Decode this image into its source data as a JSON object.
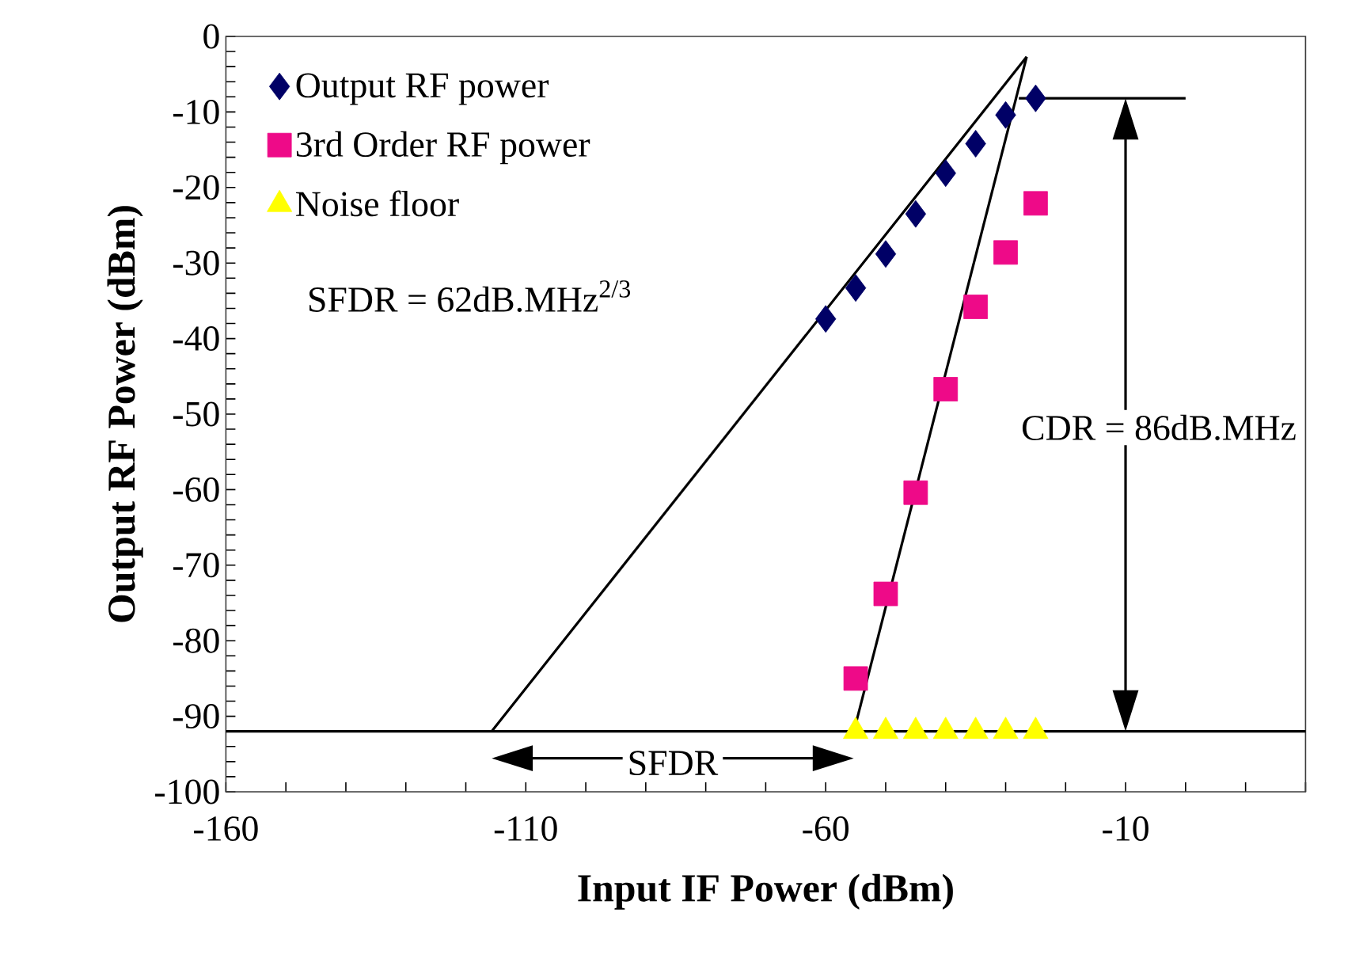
{
  "chart_data": {
    "type": "scatter",
    "xlabel": "Input IF Power (dBm)",
    "ylabel": "Output RF Power (dBm)",
    "xlim": [
      -160,
      20
    ],
    "ylim": [
      -100,
      0
    ],
    "xticks": [
      -160,
      {
        "value": -150,
        "label": null
      },
      {
        "value": -140,
        "label": null
      },
      {
        "value": -130,
        "label": null
      },
      {
        "value": -120,
        "label": null
      },
      -110,
      {
        "value": -100,
        "label": null
      },
      {
        "value": -90,
        "label": null
      },
      {
        "value": -80,
        "label": null
      },
      {
        "value": -70,
        "label": null
      },
      -60,
      {
        "value": -50,
        "label": null
      },
      {
        "value": -40,
        "label": null
      },
      {
        "value": -30,
        "label": null
      },
      {
        "value": -20,
        "label": null
      },
      -10,
      {
        "value": 0,
        "label": null
      },
      {
        "value": 10,
        "label": null
      },
      {
        "value": 20,
        "label": null
      }
    ],
    "yticks": [
      -100,
      {
        "value": -98,
        "label": null
      },
      {
        "value": -96,
        "label": null
      },
      {
        "value": -94,
        "label": null
      },
      {
        "value": -92,
        "label": null
      },
      -90,
      {
        "value": -88,
        "label": null
      },
      {
        "value": -86,
        "label": null
      },
      {
        "value": -84,
        "label": null
      },
      {
        "value": -82,
        "label": null
      },
      -80,
      {
        "value": -78,
        "label": null
      },
      {
        "value": -76,
        "label": null
      },
      {
        "value": -74,
        "label": null
      },
      {
        "value": -72,
        "label": null
      },
      -70,
      {
        "value": -68,
        "label": null
      },
      {
        "value": -66,
        "label": null
      },
      {
        "value": -64,
        "label": null
      },
      {
        "value": -62,
        "label": null
      },
      -60,
      {
        "value": -58,
        "label": null
      },
      {
        "value": -56,
        "label": null
      },
      {
        "value": -54,
        "label": null
      },
      {
        "value": -52,
        "label": null
      },
      -50,
      {
        "value": -48,
        "label": null
      },
      {
        "value": -46,
        "label": null
      },
      {
        "value": -44,
        "label": null
      },
      {
        "value": -42,
        "label": null
      },
      -40,
      {
        "value": -38,
        "label": null
      },
      {
        "value": -36,
        "label": null
      },
      {
        "value": -34,
        "label": null
      },
      {
        "value": -32,
        "label": null
      },
      -30,
      {
        "value": -28,
        "label": null
      },
      {
        "value": -26,
        "label": null
      },
      {
        "value": -24,
        "label": null
      },
      {
        "value": -22,
        "label": null
      },
      -20,
      {
        "value": -18,
        "label": null
      },
      {
        "value": -16,
        "label": null
      },
      {
        "value": -14,
        "label": null
      },
      {
        "value": -12,
        "label": null
      },
      -10,
      {
        "value": -8,
        "label": null
      },
      {
        "value": -6,
        "label": null
      },
      {
        "value": -4,
        "label": null
      },
      {
        "value": -2,
        "label": null
      },
      0
    ],
    "legend": "top left",
    "grid": false,
    "series": [
      {
        "name": "Output RF power",
        "marker": "diamond",
        "color": "#000066",
        "x": [
          -60,
          -55,
          -50,
          -45,
          -40,
          -35,
          -30,
          -25
        ],
        "values": [
          -37.4,
          -33.3,
          -28.8,
          -23.5,
          -18.1,
          -14.2,
          -10.4,
          -8.2
        ]
      },
      {
        "name": "3rd Order RF power",
        "marker": "square",
        "color": "#ee0a88",
        "x": [
          -55,
          -50,
          -45,
          -40,
          -35,
          -30,
          -25
        ],
        "values": [
          -85.0,
          -73.8,
          -60.4,
          -46.7,
          -35.8,
          -28.6,
          -22.1
        ]
      },
      {
        "name": "Noise floor",
        "marker": "triangle",
        "color": "#ffff00",
        "x": [
          -55,
          -50,
          -45,
          -40,
          -35,
          -30,
          -25
        ],
        "values": [
          -92,
          -92,
          -92,
          -92,
          -92,
          -92,
          -92
        ]
      },
      {
        "type": "line",
        "color": "#000000",
        "x": [
          -115.7,
          -26.5
        ],
        "values": [
          -92,
          -2.7
        ]
      },
      {
        "type": "line",
        "color": "#000000",
        "x": [
          -55.3,
          -26.5
        ],
        "values": [
          -92,
          -2.7
        ]
      },
      {
        "type": "line",
        "color": "#000000",
        "x": [
          -27.8,
          0
        ],
        "values": [
          -8.2,
          -8.2
        ]
      }
    ],
    "ref_lines": [
      {
        "axis": "y",
        "value": -92,
        "color": "#000000"
      }
    ],
    "annotations": [
      "SFDR = 62dB.MHz$^{2/3}$",
      "CDR = 86dB.MHz",
      "SFDR"
    ]
  }
}
